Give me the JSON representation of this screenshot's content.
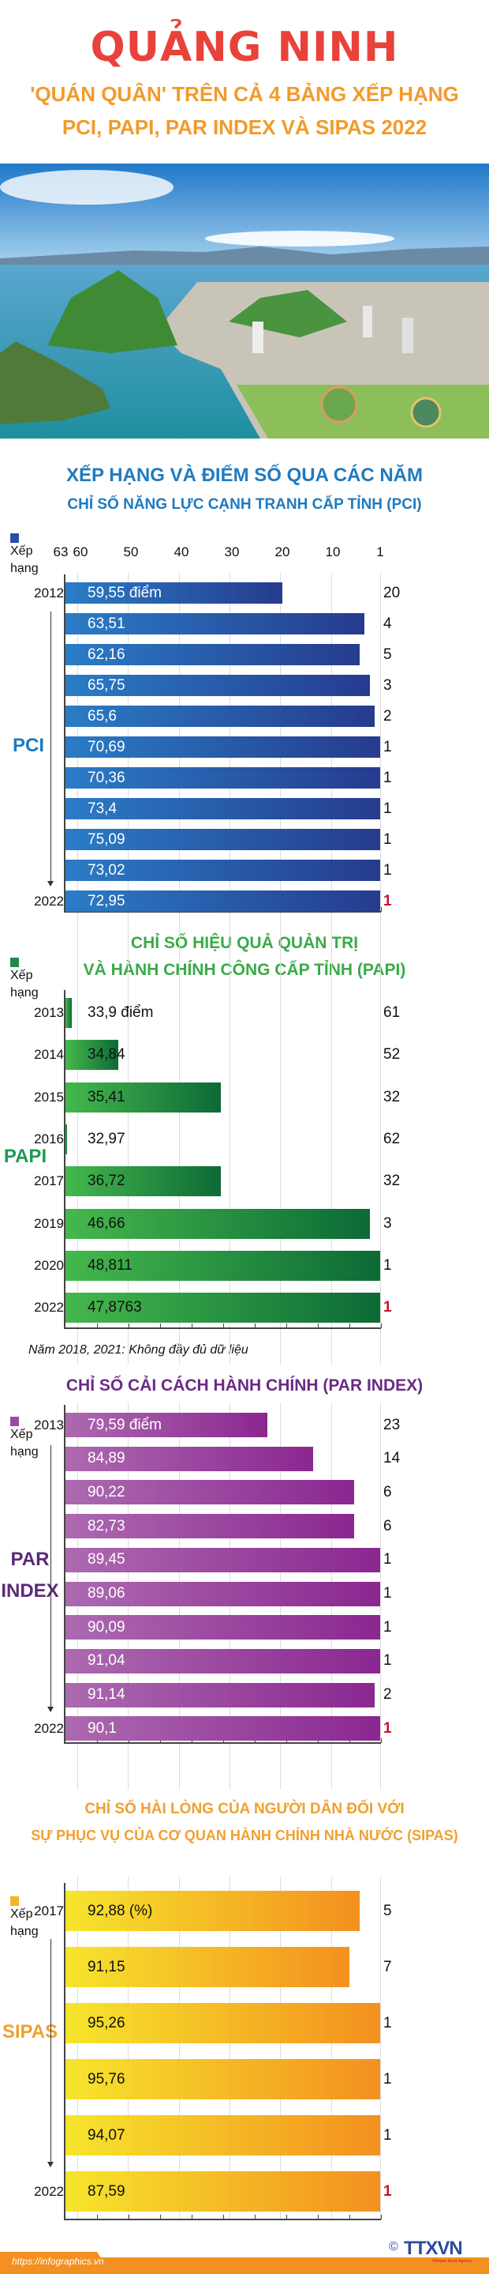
{
  "header": {
    "title": "QUẢNG NINH",
    "subtitle_line1": "'QUÁN QUÂN' TRÊN CẢ 4 BẢNG XẾP HẠNG",
    "subtitle_line2": "PCI, PAPI, PAR INDEX VÀ SIPAS 2022"
  },
  "section_heading": "XẾP HẠNG VÀ ĐIỂM SỐ QUA CÁC NĂM",
  "rank_legend": "Xếp hạng",
  "rank_legend_line1": "Xếp",
  "rank_legend_line2": "hạng",
  "rank_axis_ticks": [
    "63",
    "60",
    "50",
    "40",
    "30",
    "20",
    "10",
    "1"
  ],
  "papi_note": "Năm 2018, 2021: Không đầy đủ dữ liệu",
  "footer": {
    "url": "https://infographics.vn",
    "logo": "TTXVN",
    "logo_sub": "Vietnam News Agency",
    "copyright": "©"
  },
  "colors": {
    "pci": "#2563b0",
    "papi": "#23924a",
    "par": "#95379a",
    "sipas": "#f5b82a",
    "best_rank": "#c8102e"
  },
  "chart_data": [
    {
      "type": "bar",
      "id": "pci",
      "title": "CHỈ SỐ NĂNG LỰC CẠNH TRANH CẤP TỈNH (PCI)",
      "label": "PCI",
      "xlabel": "Xếp hạng",
      "xlim": [
        63,
        1
      ],
      "year_labels": [
        "2012",
        "",
        "",
        "",
        "",
        "",
        "",
        "",
        "",
        "",
        "2022"
      ],
      "scores": [
        "59,55 điểm",
        "63,51",
        "62,16",
        "65,75",
        "65,6",
        "70,69",
        "70,36",
        "73,4",
        "75,09",
        "73,02",
        "72,95"
      ],
      "ranks": [
        20,
        4,
        5,
        3,
        2,
        1,
        1,
        1,
        1,
        1,
        1
      ]
    },
    {
      "type": "bar",
      "id": "papi",
      "title_line1": "CHỈ SỐ HIỆU QUẢ QUẢN TRỊ",
      "title_line2": "VÀ HÀNH CHÍNH CÔNG CẤP TỈNH (PAPI)",
      "label": "PAPI",
      "xlim": [
        63,
        1
      ],
      "year_labels": [
        "2013",
        "2014",
        "2015",
        "2016",
        "2017",
        "2019",
        "2020",
        "2022"
      ],
      "scores": [
        "33,9 điểm",
        "34,84",
        "35,41",
        "32,97",
        "36,72",
        "46,66",
        "48,811",
        "47,8763"
      ],
      "ranks": [
        61,
        52,
        32,
        62,
        32,
        3,
        1,
        1
      ]
    },
    {
      "type": "bar",
      "id": "par",
      "title": "CHỈ SỐ CẢI CÁCH HÀNH CHÍNH (PAR INDEX)",
      "label_line1": "PAR",
      "label_line2": "INDEX",
      "xlim": [
        63,
        1
      ],
      "year_labels": [
        "2013",
        "",
        "",
        "",
        "",
        "",
        "",
        "",
        "",
        "2022"
      ],
      "scores": [
        "79,59 điểm",
        "84,89",
        "90,22",
        "82,73",
        "89,45",
        "89,06",
        "90,09",
        "91,04",
        "91,14",
        "90,1"
      ],
      "ranks": [
        23,
        14,
        6,
        6,
        1,
        1,
        1,
        1,
        2,
        1
      ]
    },
    {
      "type": "bar",
      "id": "sipas",
      "title_line1": "CHỈ SỐ HÀI LÒNG CỦA NGƯỜI DÂN ĐỐI VỚI",
      "title_line2": "SỰ PHỤC VỤ CỦA CƠ QUAN HÀNH CHÍNH NHÀ NƯỚC (SIPAS)",
      "label": "SIPAS",
      "xlim": [
        63,
        1
      ],
      "year_labels": [
        "2017",
        "",
        "",
        "",
        "",
        "2022"
      ],
      "scores": [
        "92,88 (%)",
        "91,15",
        "95,26",
        "95,76",
        "94,07",
        "87,59"
      ],
      "ranks": [
        5,
        7,
        1,
        1,
        1,
        1
      ]
    }
  ]
}
